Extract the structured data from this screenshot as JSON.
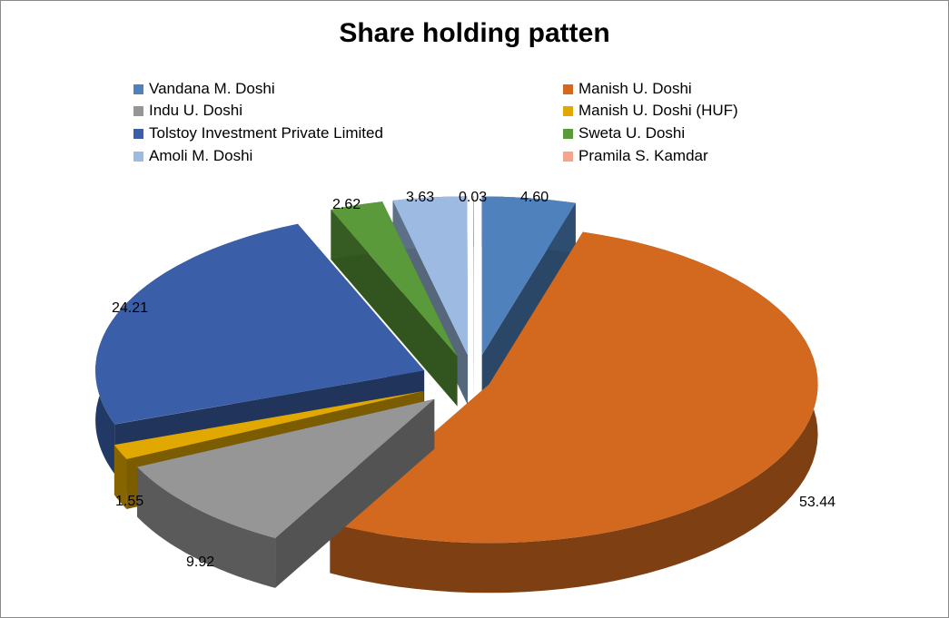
{
  "chart_data": {
    "type": "pie",
    "style": "3d-exploded",
    "title": "Share holding patten",
    "legend_position": "top",
    "series": [
      {
        "name": "Vandana M. Doshi",
        "value": 4.6,
        "label": "4.60",
        "color": "#4F81BD"
      },
      {
        "name": "Manish U. Doshi",
        "value": 53.44,
        "label": "53.44",
        "color": "#D2691E"
      },
      {
        "name": "Indu U. Doshi",
        "value": 9.92,
        "label": "9.92",
        "color": "#969696"
      },
      {
        "name": "Manish U. Doshi (HUF)",
        "value": 1.55,
        "label": "1.55",
        "color": "#E0A800"
      },
      {
        "name": "Tolstoy Investment Private Limited",
        "value": 24.21,
        "label": "24.21",
        "color": "#3A5FA8"
      },
      {
        "name": "Sweta U. Doshi",
        "value": 2.62,
        "label": "2.62",
        "color": "#5B9A3A"
      },
      {
        "name": "Amoli M. Doshi",
        "value": 3.63,
        "label": "3.63",
        "color": "#9DBBE2"
      },
      {
        "name": "Pramila S. Kamdar",
        "value": 0.03,
        "label": "0.03",
        "color": "#F4A58C"
      }
    ]
  }
}
